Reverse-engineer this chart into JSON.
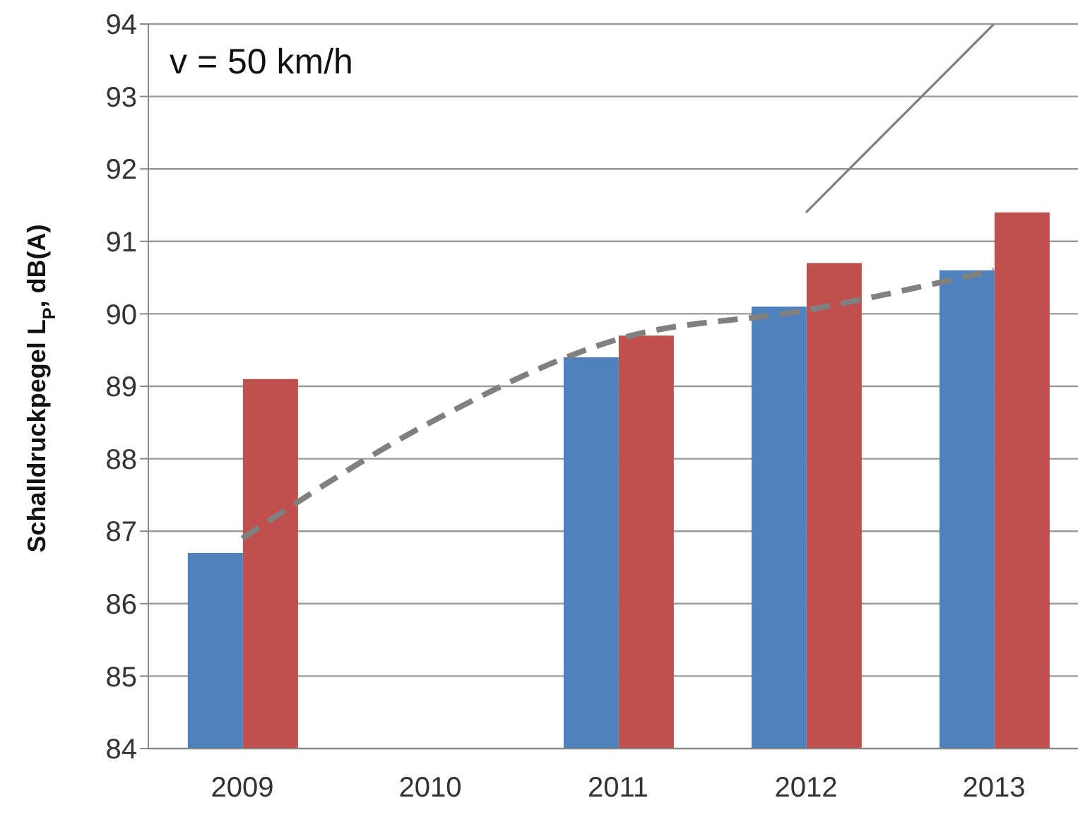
{
  "chart_data": {
    "type": "bar",
    "ylabel": "Schalldruckpegel L$_{P}$, dB(A)",
    "annotations": [
      "v = 50 km/h"
    ],
    "categories": [
      "2009",
      "2010",
      "2011",
      "2012",
      "2013"
    ],
    "series": [
      {
        "color": "#4f81bd",
        "values": [
          86.7,
          null,
          89.4,
          90.1,
          90.6
        ]
      },
      {
        "color": "#c0504d",
        "values": [
          89.1,
          null,
          89.7,
          90.7,
          91.4
        ]
      },
      {
        "type": "line",
        "color": "#808080",
        "line_style": "dashed",
        "values": [
          86.9,
          88.5,
          89.65,
          90.05,
          90.6
        ]
      },
      {
        "type": "line",
        "color": "#7f7f7f",
        "line_style": "solid",
        "values": [
          null,
          null,
          null,
          91.4,
          94
        ]
      }
    ],
    "ylim": [
      84,
      94
    ],
    "yticks": [
      84,
      85,
      86,
      87,
      88,
      89,
      90,
      91,
      92,
      93,
      94
    ],
    "grid": "y"
  }
}
